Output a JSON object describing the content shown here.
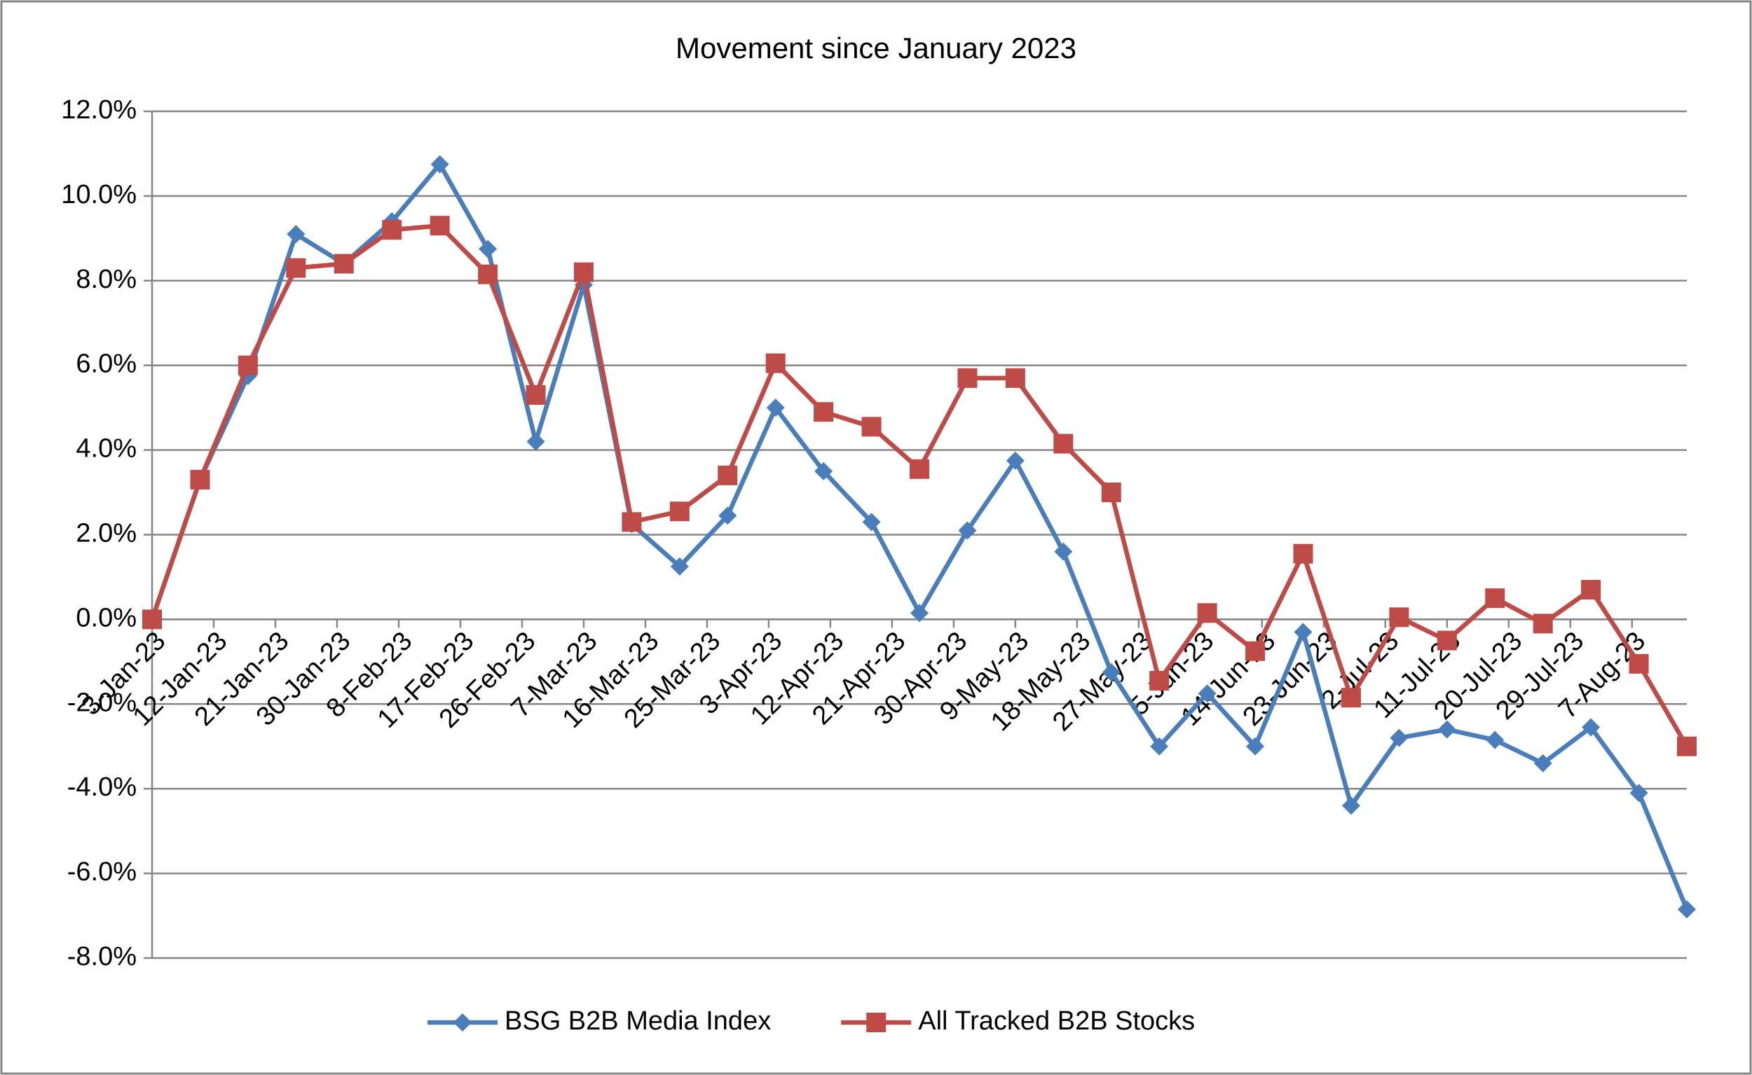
{
  "chart_data": {
    "type": "line",
    "title": "Movement since January 2023",
    "x": [
      "2023-01-03",
      "2023-01-10",
      "2023-01-17",
      "2023-01-24",
      "2023-01-31",
      "2023-02-07",
      "2023-02-14",
      "2023-02-21",
      "2023-02-28",
      "2023-03-07",
      "2023-03-14",
      "2023-03-21",
      "2023-03-28",
      "2023-04-04",
      "2023-04-11",
      "2023-04-18",
      "2023-04-25",
      "2023-05-02",
      "2023-05-09",
      "2023-05-16",
      "2023-05-23",
      "2023-05-30",
      "2023-06-06",
      "2023-06-13",
      "2023-06-20",
      "2023-06-27",
      "2023-07-04",
      "2023-07-11",
      "2023-07-18",
      "2023-07-25",
      "2023-08-01",
      "2023-08-08",
      "2023-08-15"
    ],
    "xlim": [
      "2023-01-03",
      "2023-08-15"
    ],
    "xticks": [
      {
        "value": "2023-01-03",
        "label": "3-Jan-23"
      },
      {
        "value": "2023-01-12",
        "label": "12-Jan-23"
      },
      {
        "value": "2023-01-21",
        "label": "21-Jan-23"
      },
      {
        "value": "2023-01-30",
        "label": "30-Jan-23"
      },
      {
        "value": "2023-02-08",
        "label": "8-Feb-23"
      },
      {
        "value": "2023-02-17",
        "label": "17-Feb-23"
      },
      {
        "value": "2023-02-26",
        "label": "26-Feb-23"
      },
      {
        "value": "2023-03-07",
        "label": "7-Mar-23"
      },
      {
        "value": "2023-03-16",
        "label": "16-Mar-23"
      },
      {
        "value": "2023-03-25",
        "label": "25-Mar-23"
      },
      {
        "value": "2023-04-03",
        "label": "3-Apr-23"
      },
      {
        "value": "2023-04-12",
        "label": "12-Apr-23"
      },
      {
        "value": "2023-04-21",
        "label": "21-Apr-23"
      },
      {
        "value": "2023-04-30",
        "label": "30-Apr-23"
      },
      {
        "value": "2023-05-09",
        "label": "9-May-23"
      },
      {
        "value": "2023-05-18",
        "label": "18-May-23"
      },
      {
        "value": "2023-05-27",
        "label": "27-May-23"
      },
      {
        "value": "2023-06-05",
        "label": "5-Jun-23"
      },
      {
        "value": "2023-06-14",
        "label": "14-Jun-23"
      },
      {
        "value": "2023-06-23",
        "label": "23-Jun-23"
      },
      {
        "value": "2023-07-02",
        "label": "2-Jul-23"
      },
      {
        "value": "2023-07-11",
        "label": "11-Jul-23"
      },
      {
        "value": "2023-07-20",
        "label": "20-Jul-23"
      },
      {
        "value": "2023-07-29",
        "label": "29-Jul-23"
      },
      {
        "value": "2023-08-07",
        "label": "7-Aug-23"
      }
    ],
    "ylim": [
      -8,
      12
    ],
    "yticks": [
      {
        "value": -8,
        "label": "-8.0%"
      },
      {
        "value": -6,
        "label": "-6.0%"
      },
      {
        "value": -4,
        "label": "-4.0%"
      },
      {
        "value": -2,
        "label": "-2.0%"
      },
      {
        "value": 0,
        "label": "0.0%"
      },
      {
        "value": 2,
        "label": "2.0%"
      },
      {
        "value": 4,
        "label": "4.0%"
      },
      {
        "value": 6,
        "label": "6.0%"
      },
      {
        "value": 8,
        "label": "8.0%"
      },
      {
        "value": 10,
        "label": "10.0%"
      },
      {
        "value": 12,
        "label": "12.0%"
      }
    ],
    "grid": true,
    "legend": "bottom",
    "series": [
      {
        "name": "BSG B2B Media Index",
        "color": "#4a7ebb",
        "marker": "diamond",
        "values": [
          0,
          3.3,
          5.75,
          9.1,
          8.4,
          9.4,
          10.75,
          8.75,
          4.2,
          7.9,
          2.25,
          1.25,
          2.45,
          5.0,
          3.5,
          2.3,
          0.15,
          2.1,
          3.75,
          1.6,
          -1.25,
          -3.0,
          -1.75,
          -3.0,
          -0.3,
          -4.4,
          -2.8,
          -2.6,
          -2.85,
          -3.4,
          -2.55,
          -4.1,
          -6.85
        ]
      },
      {
        "name": "All Tracked B2B Stocks",
        "color": "#be4b48",
        "marker": "square",
        "values": [
          0,
          3.3,
          6.0,
          8.3,
          8.4,
          9.2,
          9.3,
          8.15,
          5.3,
          8.2,
          2.3,
          2.55,
          3.4,
          6.05,
          4.9,
          4.55,
          3.55,
          5.7,
          5.7,
          4.15,
          3.0,
          -1.45,
          0.15,
          -0.75,
          1.55,
          -1.85,
          0.05,
          -0.5,
          0.5,
          -0.1,
          0.7,
          -1.05,
          -3.0
        ]
      }
    ]
  }
}
